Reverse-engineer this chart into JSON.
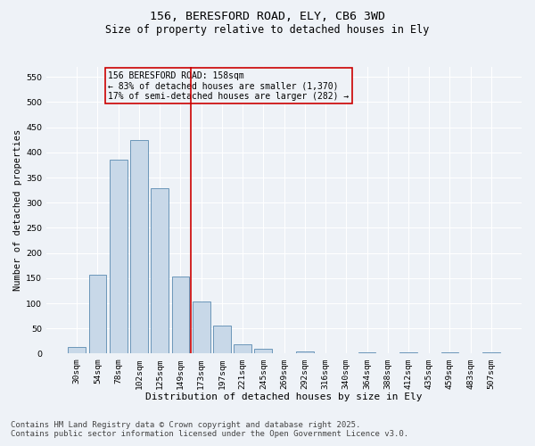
{
  "title_line1": "156, BERESFORD ROAD, ELY, CB6 3WD",
  "title_line2": "Size of property relative to detached houses in Ely",
  "xlabel": "Distribution of detached houses by size in Ely",
  "ylabel": "Number of detached properties",
  "bar_labels": [
    "30sqm",
    "54sqm",
    "78sqm",
    "102sqm",
    "125sqm",
    "149sqm",
    "173sqm",
    "197sqm",
    "221sqm",
    "245sqm",
    "269sqm",
    "292sqm",
    "316sqm",
    "340sqm",
    "364sqm",
    "388sqm",
    "412sqm",
    "435sqm",
    "459sqm",
    "483sqm",
    "507sqm"
  ],
  "bar_values": [
    13,
    157,
    386,
    425,
    328,
    153,
    104,
    56,
    19,
    10,
    0,
    4,
    0,
    0,
    3,
    0,
    3,
    0,
    3,
    0,
    3
  ],
  "bar_color": "#c8d8e8",
  "bar_edgecolor": "#5a8ab0",
  "vline_x": 5.5,
  "vline_color": "#cc0000",
  "annotation_text": "156 BERESFORD ROAD: 158sqm\n← 83% of detached houses are smaller (1,370)\n17% of semi-detached houses are larger (282) →",
  "box_color": "#cc0000",
  "ylim": [
    0,
    570
  ],
  "yticks": [
    0,
    50,
    100,
    150,
    200,
    250,
    300,
    350,
    400,
    450,
    500,
    550
  ],
  "background_color": "#eef2f7",
  "grid_color": "#ffffff",
  "footer_line1": "Contains HM Land Registry data © Crown copyright and database right 2025.",
  "footer_line2": "Contains public sector information licensed under the Open Government Licence v3.0.",
  "footer_fontsize": 6.5,
  "title1_fontsize": 9.5,
  "title2_fontsize": 8.5,
  "ylabel_fontsize": 7.5,
  "xlabel_fontsize": 8.0,
  "tick_fontsize": 6.8,
  "ann_fontsize": 7.0
}
